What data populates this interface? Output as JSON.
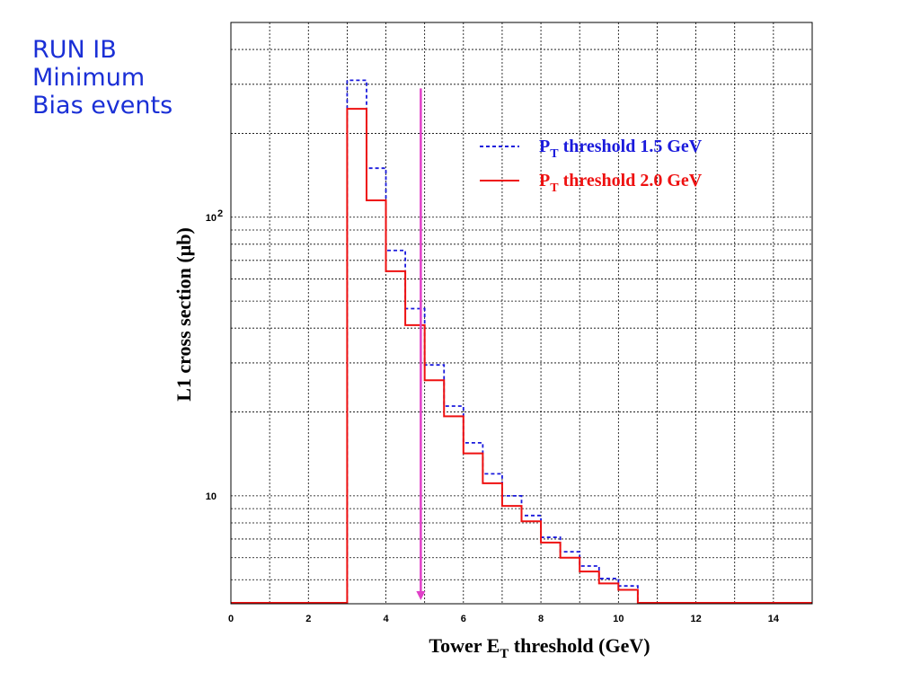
{
  "annotation": {
    "lines": [
      "RUN IB",
      "Minimum",
      "Bias events"
    ]
  },
  "colors": {
    "series_dashed": "#1a1adc",
    "series_solid": "#ee1111",
    "arrow": "#e040c8",
    "grid": "#000000",
    "annotation": "#1a2fd6"
  },
  "chart_data": {
    "type": "line",
    "subtype": "step-histogram",
    "title": "",
    "xlabel": {
      "main": "Tower E",
      "sub": "T",
      "tail": " threshold (GeV)"
    },
    "ylabel": "L1 cross section (μb)",
    "xlim": [
      0,
      15
    ],
    "ylim": [
      4.1,
      500
    ],
    "yscale": "log",
    "grid": true,
    "legend_position": "top-right",
    "x_ticks": [
      {
        "value": 0,
        "label": "0"
      },
      {
        "value": 2,
        "label": "2"
      },
      {
        "value": 4,
        "label": "4"
      },
      {
        "value": 6,
        "label": "6"
      },
      {
        "value": 8,
        "label": "8"
      },
      {
        "value": 10,
        "label": "10"
      },
      {
        "value": 12,
        "label": "12"
      },
      {
        "value": 14,
        "label": "14"
      }
    ],
    "y_ticks": [
      {
        "value": 10,
        "label": "10",
        "exp": ""
      },
      {
        "value": 100,
        "label": "10",
        "exp": "2"
      }
    ],
    "bin_edges": [
      3.0,
      3.5,
      4.0,
      4.5,
      5.0,
      5.5,
      6.0,
      6.5,
      7.0,
      7.5,
      8.0,
      8.5,
      9.0,
      9.5,
      10.0,
      10.5
    ],
    "series": [
      {
        "name": "P threshold 1.5 GeV",
        "legend": {
          "main": "P",
          "sub": "T",
          "tail": " threshold 1.5 GeV"
        },
        "style": "dashed",
        "values": [
          310,
          150,
          76,
          47,
          29.5,
          21,
          15.5,
          12,
          10,
          8.5,
          7.1,
          6.3,
          5.6,
          5.05,
          4.75
        ]
      },
      {
        "name": "P threshold 2.0 GeV",
        "legend": {
          "main": "P",
          "sub": "T",
          "tail": " threshold 2.0 GeV"
        },
        "style": "solid",
        "values": [
          245,
          115,
          64,
          41,
          26,
          19.3,
          14.2,
          11.1,
          9.2,
          8.1,
          6.8,
          6.0,
          5.35,
          4.85,
          4.6
        ]
      }
    ],
    "annotations": [
      {
        "type": "arrow",
        "x": 4.9,
        "y_from": 290,
        "y_to": "floor"
      }
    ]
  }
}
